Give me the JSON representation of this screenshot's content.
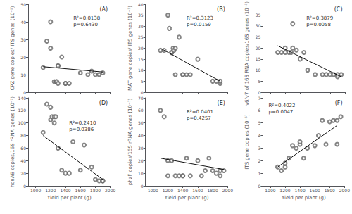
{
  "chart_data": [
    {
      "type": "scatter",
      "title": "(A)",
      "ylabel": "CPZ gene copies/ ITS genes (10⁻⁵)",
      "annotations": [
        "R²=0.0138\np=0.6430"
      ],
      "xlim": [
        900,
        2000
      ],
      "xticks": [
        1000,
        1200,
        1400,
        1600,
        1800,
        2000
      ],
      "ylim": [
        0,
        50
      ],
      "yticks": [
        0,
        10,
        20,
        30,
        40,
        50
      ],
      "grid": false,
      "tick_labels": "y",
      "series": [
        {
          "type": "scatter",
          "color": "#666666",
          "x": [
            1100,
            1150,
            1200,
            1200,
            1250,
            1280,
            1280,
            1300,
            1300,
            1300,
            1350,
            1400,
            1400,
            1450,
            1600,
            1700,
            1750,
            1800,
            1850,
            1900
          ],
          "values": [
            14,
            29,
            40,
            25,
            6,
            6,
            6,
            5,
            15,
            15,
            20,
            5,
            5,
            5,
            11,
            10,
            12,
            10,
            10,
            11
          ]
        },
        {
          "type": "line",
          "color": "#111111",
          "x": [
            1100,
            1900
          ],
          "values": [
            14.5,
            11.5
          ]
        }
      ]
    },
    {
      "type": "scatter",
      "title": "(B)",
      "ylabel": "MAT gene copies/ ITS genes (10⁻³)",
      "annotations": [
        "R²=0.3123\np=0.0159"
      ],
      "xlim": [
        900,
        2000
      ],
      "xticks": [
        1000,
        1200,
        1400,
        1600,
        1800,
        2000
      ],
      "ylim": [
        0,
        40
      ],
      "yticks": [
        0,
        5,
        10,
        15,
        20,
        25,
        30,
        35,
        40
      ],
      "grid": false,
      "tick_labels": "y",
      "series": [
        {
          "type": "scatter",
          "color": "#666666",
          "x": [
            1100,
            1150,
            1200,
            1220,
            1250,
            1250,
            1270,
            1280,
            1300,
            1300,
            1350,
            1400,
            1400,
            1450,
            1500,
            1600,
            1800,
            1850,
            1900,
            1900
          ],
          "values": [
            19,
            19,
            35,
            29,
            18,
            18,
            20,
            19,
            20,
            8,
            25,
            8,
            8,
            8,
            8,
            15,
            5,
            5,
            4,
            5
          ]
        },
        {
          "type": "line",
          "color": "#111111",
          "x": [
            1100,
            1900
          ],
          "values": [
            20,
            5
          ]
        }
      ]
    },
    {
      "type": "scatter",
      "title": "(C)",
      "ylabel": "v6/v7 of 16S RNA copies/16S genes (10⁻³)",
      "annotations": [
        "R²=0.3879\np=0.0058"
      ],
      "xlim": [
        900,
        2000
      ],
      "xticks": [
        1000,
        1200,
        1400,
        1600,
        1800,
        2000
      ],
      "ylim": [
        0,
        35
      ],
      "yticks": [
        0,
        5,
        10,
        15,
        20,
        25,
        30,
        35
      ],
      "grid": false,
      "tick_labels": "y",
      "series": [
        {
          "type": "scatter",
          "color": "#666666",
          "x": [
            1100,
            1150,
            1200,
            1200,
            1250,
            1280,
            1300,
            1300,
            1350,
            1400,
            1450,
            1500,
            1600,
            1700,
            1750,
            1800,
            1850,
            1900,
            1900,
            1950
          ],
          "values": [
            18,
            18,
            18,
            20,
            18,
            18,
            31,
            20,
            19,
            15,
            18,
            10,
            8,
            8,
            8,
            8,
            8,
            8,
            7,
            8
          ]
        },
        {
          "type": "line",
          "color": "#111111",
          "x": [
            1100,
            1950
          ],
          "values": [
            21,
            7
          ]
        }
      ]
    },
    {
      "type": "scatter",
      "title": "(D)",
      "ylabel": "hcnAB copies/16S rRNA genes (10⁻⁷)",
      "xlabel": "Yield per plant (g)",
      "annotations": [
        "R²=0.2410\np=0.0386"
      ],
      "xlim": [
        900,
        2000
      ],
      "xticks": [
        1000,
        1200,
        1400,
        1600,
        1800,
        2000
      ],
      "ylim": [
        0,
        140
      ],
      "yticks": [
        0,
        20,
        40,
        60,
        80,
        100,
        120,
        140
      ],
      "grid": false,
      "series": [
        {
          "type": "scatter",
          "color": "#666666",
          "x": [
            1100,
            1150,
            1200,
            1200,
            1220,
            1250,
            1250,
            1270,
            1300,
            1350,
            1400,
            1450,
            1500,
            1600,
            1650,
            1750,
            1800,
            1850,
            1900,
            1900
          ],
          "values": [
            85,
            130,
            125,
            105,
            110,
            100,
            110,
            110,
            60,
            25,
            20,
            20,
            70,
            25,
            65,
            30,
            10,
            8,
            8,
            8
          ]
        },
        {
          "type": "line",
          "color": "#111111",
          "x": [
            1100,
            1900
          ],
          "values": [
            80,
            10
          ]
        }
      ]
    },
    {
      "type": "scatter",
      "title": "(E)",
      "ylabel": "phzF copies/16S rRNA genes (10⁻⁷)",
      "xlabel": "Yield per plant (g)",
      "annotations": [
        "R²=0.0401\np=0.4257"
      ],
      "xlim": [
        900,
        2000
      ],
      "xticks": [
        1000,
        1200,
        1400,
        1600,
        1800,
        2000
      ],
      "ylim": [
        0,
        70
      ],
      "yticks": [
        0,
        10,
        20,
        30,
        40,
        50,
        60,
        70
      ],
      "grid": false,
      "series": [
        {
          "type": "scatter",
          "color": "#666666",
          "x": [
            1100,
            1150,
            1200,
            1200,
            1250,
            1300,
            1350,
            1400,
            1400,
            1450,
            1500,
            1600,
            1650,
            1700,
            1750,
            1800,
            1850,
            1900,
            1900,
            1950
          ],
          "values": [
            60,
            55,
            20,
            8,
            20,
            8,
            8,
            8,
            8,
            22,
            8,
            20,
            8,
            12,
            22,
            12,
            10,
            12,
            8,
            12
          ]
        },
        {
          "type": "line",
          "color": "#111111",
          "x": [
            1100,
            1950
          ],
          "values": [
            22,
            13
          ]
        }
      ]
    },
    {
      "type": "scatter",
      "title": "(F)",
      "ylabel": "ITS gene copies (10⁻⁵)",
      "xlabel": "Yield per plant (g)",
      "annotations": [
        "R²=0.4022\np=0.0047"
      ],
      "xlim": [
        900,
        2000
      ],
      "xticks": [
        1000,
        1200,
        1400,
        1600,
        1800,
        2000
      ],
      "ylim": [
        0,
        7
      ],
      "yticks": [
        0,
        1,
        2,
        3,
        4,
        5,
        6,
        7
      ],
      "grid": false,
      "series": [
        {
          "type": "scatter",
          "color": "#666666",
          "x": [
            1100,
            1150,
            1200,
            1200,
            1250,
            1300,
            1350,
            1400,
            1400,
            1450,
            1500,
            1600,
            1650,
            1700,
            1750,
            1800,
            1850,
            1900,
            1900,
            1950
          ],
          "values": [
            1.5,
            1.2,
            1.5,
            1.8,
            2.2,
            3.2,
            3.0,
            3.3,
            3.5,
            2.2,
            3.0,
            3.2,
            4.0,
            5.2,
            3.3,
            5.1,
            5.2,
            3.3,
            5.2,
            5.5
          ]
        },
        {
          "type": "line",
          "color": "#111111",
          "x": [
            1100,
            1900
          ],
          "values": [
            1.5,
            4.8
          ]
        }
      ]
    }
  ]
}
